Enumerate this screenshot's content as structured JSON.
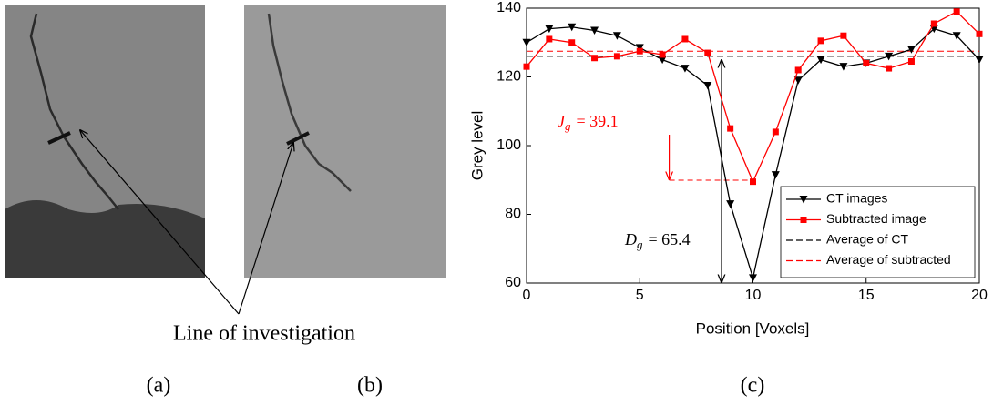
{
  "chart_data": {
    "type": "line",
    "xlabel": "Position [Voxels]",
    "ylabel": "Grey level",
    "x": [
      0,
      1,
      2,
      3,
      4,
      5,
      6,
      7,
      8,
      9,
      10,
      11,
      12,
      13,
      14,
      15,
      16,
      17,
      18,
      19,
      20
    ],
    "series": [
      {
        "name": "CT images",
        "color": "#000000",
        "marker": "triangle-down",
        "values": [
          130,
          134,
          134.5,
          133.5,
          132,
          128.5,
          125,
          122.5,
          117.5,
          83,
          61.5,
          91.5,
          119,
          125,
          123,
          124,
          126,
          128,
          134,
          132,
          125
        ]
      },
      {
        "name": "Subtracted image",
        "color": "#ff0000",
        "marker": "square",
        "values": [
          123,
          131,
          130,
          125.5,
          126,
          127.5,
          126.5,
          131,
          127,
          105,
          89.5,
          104,
          122,
          130.5,
          132,
          124,
          122.5,
          124.5,
          135.5,
          139,
          132.5
        ]
      }
    ],
    "reference_lines": [
      {
        "name": "Average of CT",
        "color": "#000000",
        "value": 126
      },
      {
        "name": "Average of subtracted",
        "color": "#ff0000",
        "value": 127.5
      }
    ],
    "annotations": [
      {
        "symbol": "J",
        "subscript": "g",
        "text": "= 39.1",
        "color": "#ff0000"
      },
      {
        "symbol": "D",
        "subscript": "g",
        "text": "= 65.4",
        "color": "#000000"
      }
    ],
    "xlim": [
      0,
      20
    ],
    "xticks": [
      0,
      5,
      10,
      15,
      20
    ],
    "ylim": [
      60,
      140
    ],
    "yticks": [
      60,
      80,
      100,
      120,
      140
    ],
    "grid": false,
    "legend": "lower right"
  },
  "figure": {
    "callout": "Line of investigation",
    "panel_labels": [
      "(a)",
      "(b)",
      "(c)"
    ]
  }
}
